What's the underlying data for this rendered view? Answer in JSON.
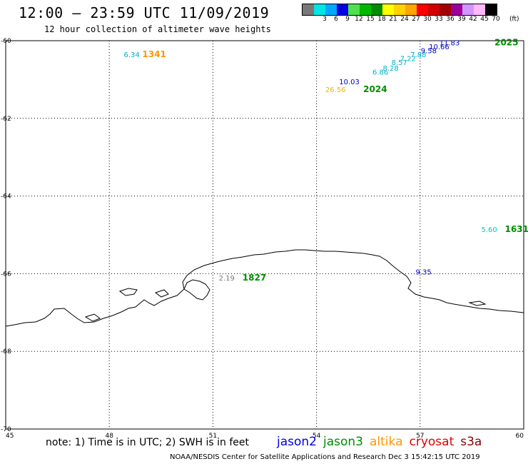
{
  "header": {
    "title": "12:00 – 23:59 UTC 11/09/2019",
    "subtitle": "12 hour collection of altimeter wave heights"
  },
  "color_scale": {
    "colors": [
      "#787878",
      "#00e5e5",
      "#00a8ff",
      "#0000e0",
      "#50e050",
      "#00b800",
      "#008c00",
      "#ffff00",
      "#ffd200",
      "#ffa500",
      "#ff0000",
      "#d20000",
      "#a50000",
      "#9b009b",
      "#d296ff",
      "#ffb9ff",
      "#000000"
    ],
    "labels": [
      "",
      "3",
      "6",
      "9",
      "12",
      "15",
      "18",
      "21",
      "24",
      "27",
      "30",
      "33",
      "36",
      "39",
      "42",
      "45",
      "70"
    ],
    "units": "(ft)"
  },
  "map": {
    "lon_range": [
      45,
      60
    ],
    "lat_range": [
      -60,
      -70
    ],
    "lon_ticks": [
      {
        "lon": 45,
        "label": "45"
      },
      {
        "lon": 48,
        "label": "48"
      },
      {
        "lon": 51,
        "label": "51"
      },
      {
        "lon": 54,
        "label": "54"
      },
      {
        "lon": 57,
        "label": "57"
      },
      {
        "lon": 60,
        "label": "60"
      }
    ],
    "lat_ticks": [
      {
        "lat": -60,
        "label": "-60"
      },
      {
        "lat": -62,
        "label": "-62"
      },
      {
        "lat": -64,
        "label": "-64"
      },
      {
        "lat": -66,
        "label": "-66"
      },
      {
        "lat": -68,
        "label": "-68"
      },
      {
        "lat": -70,
        "label": "-70"
      }
    ],
    "grid": "dotted"
  },
  "observations": [
    {
      "lon": 48.65,
      "lat": -60.35,
      "value": "6.34",
      "color": "#00b0c8"
    },
    {
      "lon": 54.55,
      "lat": -61.25,
      "value": "26.56",
      "color": "#f0b400"
    },
    {
      "lon": 54.95,
      "lat": -61.05,
      "value": "10.03",
      "color": "#0000c8"
    },
    {
      "lon": 55.85,
      "lat": -60.8,
      "value": "6.86",
      "color": "#00b0c8"
    },
    {
      "lon": 56.15,
      "lat": -60.7,
      "value": "8.28",
      "color": "#00b0c8"
    },
    {
      "lon": 56.4,
      "lat": -60.55,
      "value": "8.57",
      "color": "#00b0c8"
    },
    {
      "lon": 56.65,
      "lat": -60.45,
      "value": "7.22",
      "color": "#00b0c8"
    },
    {
      "lon": 56.95,
      "lat": -60.35,
      "value": "7.88",
      "color": "#00b0c8"
    },
    {
      "lon": 57.25,
      "lat": -60.25,
      "value": "9.58",
      "color": "#0000c8"
    },
    {
      "lon": 57.55,
      "lat": -60.15,
      "value": "10.66",
      "color": "#0000c8"
    },
    {
      "lon": 57.85,
      "lat": -60.05,
      "value": "11.83",
      "color": "#0000c8"
    },
    {
      "lon": 59.0,
      "lat": -64.85,
      "value": "5.60",
      "color": "#00c8c8"
    },
    {
      "lon": 51.4,
      "lat": -66.1,
      "value": "2.19",
      "color": "#787878"
    },
    {
      "lon": 57.1,
      "lat": -65.95,
      "value": "9.35",
      "color": "#0000c8"
    }
  ],
  "pass_times": [
    {
      "lon": 49.3,
      "lat": -60.35,
      "label": "1341",
      "color": "#ff9600"
    },
    {
      "lon": 55.7,
      "lat": -61.25,
      "label": "2024",
      "color": "#008c00"
    },
    {
      "lon": 59.5,
      "lat": -60.05,
      "label": "2025",
      "color": "#008c00"
    },
    {
      "lon": 59.8,
      "lat": -64.85,
      "label": "1631",
      "color": "#008c00"
    },
    {
      "lon": 52.2,
      "lat": -66.1,
      "label": "1827",
      "color": "#008c00"
    }
  ],
  "footer": {
    "note": "note: 1) Time is in UTC; 2) SWH is in feet",
    "satellites": [
      {
        "name": "jason2",
        "color": "#0000e0"
      },
      {
        "name": "jason3",
        "color": "#008c00"
      },
      {
        "name": "altika",
        "color": "#ff9600"
      },
      {
        "name": "cryosat",
        "color": "#e00000"
      },
      {
        "name": "s3a",
        "color": "#8c0000"
      }
    ],
    "credit": "NOAA/NESDIS Center for Satellite Applications and Research    Dec  3 15:42:15 UTC 2019"
  }
}
